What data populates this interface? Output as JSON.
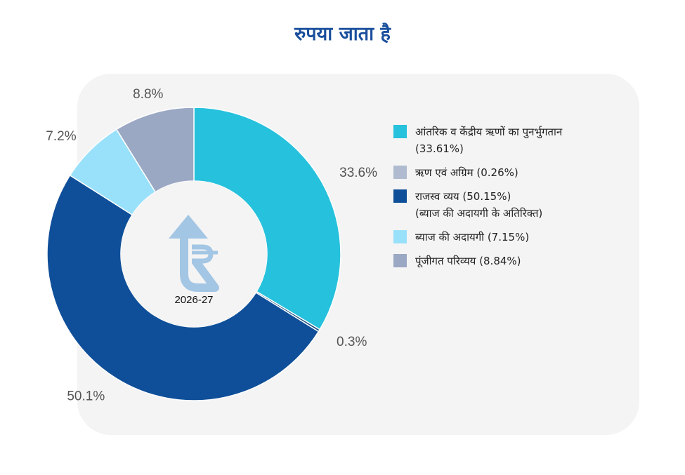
{
  "chart_data": {
    "type": "pie",
    "variant": "donut",
    "title": "रुपया जाता है",
    "center_label": "2026-27",
    "center_icon": "rupee-up-arrow-icon",
    "slices": [
      {
        "label": "आंतरिक व केंद्रीय ऋणों का पुनर्भुगतान",
        "legend_value": "(33.61%)",
        "value": 33.61,
        "data_label": "33.6%",
        "color": "#26c1dc"
      },
      {
        "label": "ऋण एवं अग्रिम",
        "legend_value": "(0.26%)",
        "value": 0.26,
        "data_label": "0.3%",
        "color": "#b0bbd0"
      },
      {
        "label": "राजस्व व्यय",
        "legend_value": "(50.15%)",
        "sublabel": "(ब्याज की अदायगी के अतिरिक्त)",
        "value": 50.15,
        "data_label": "50.1%",
        "color": "#0f4f99"
      },
      {
        "label": "ब्याज की अदायगी",
        "legend_value": "(7.15%)",
        "value": 7.15,
        "data_label": "7.2%",
        "color": "#99e1fb"
      },
      {
        "label": "पूंजीगत परिव्यय",
        "legend_value": "(8.84%)",
        "value": 8.84,
        "data_label": "8.8%",
        "color": "#9ba8c4"
      }
    ],
    "legend_position": "right"
  },
  "legend_text": [
    "आंतरिक व केंद्रीय ऋणों का पुनर्भुगतान (33.61%)",
    "ऋण एवं अग्रिम (0.26%)",
    "राजस्व व्यय (50.15%)",
    "(ब्याज की अदायगी के अतिरिक्त)",
    "ब्याज की अदायगी (7.15%)",
    "पूंजीगत परिव्यय (8.84%)"
  ],
  "legend_swatch_colors": [
    "#26c1dc",
    "#b0bbd0",
    "#0f4f99",
    "#99e1fb",
    "#9ba8c4"
  ]
}
